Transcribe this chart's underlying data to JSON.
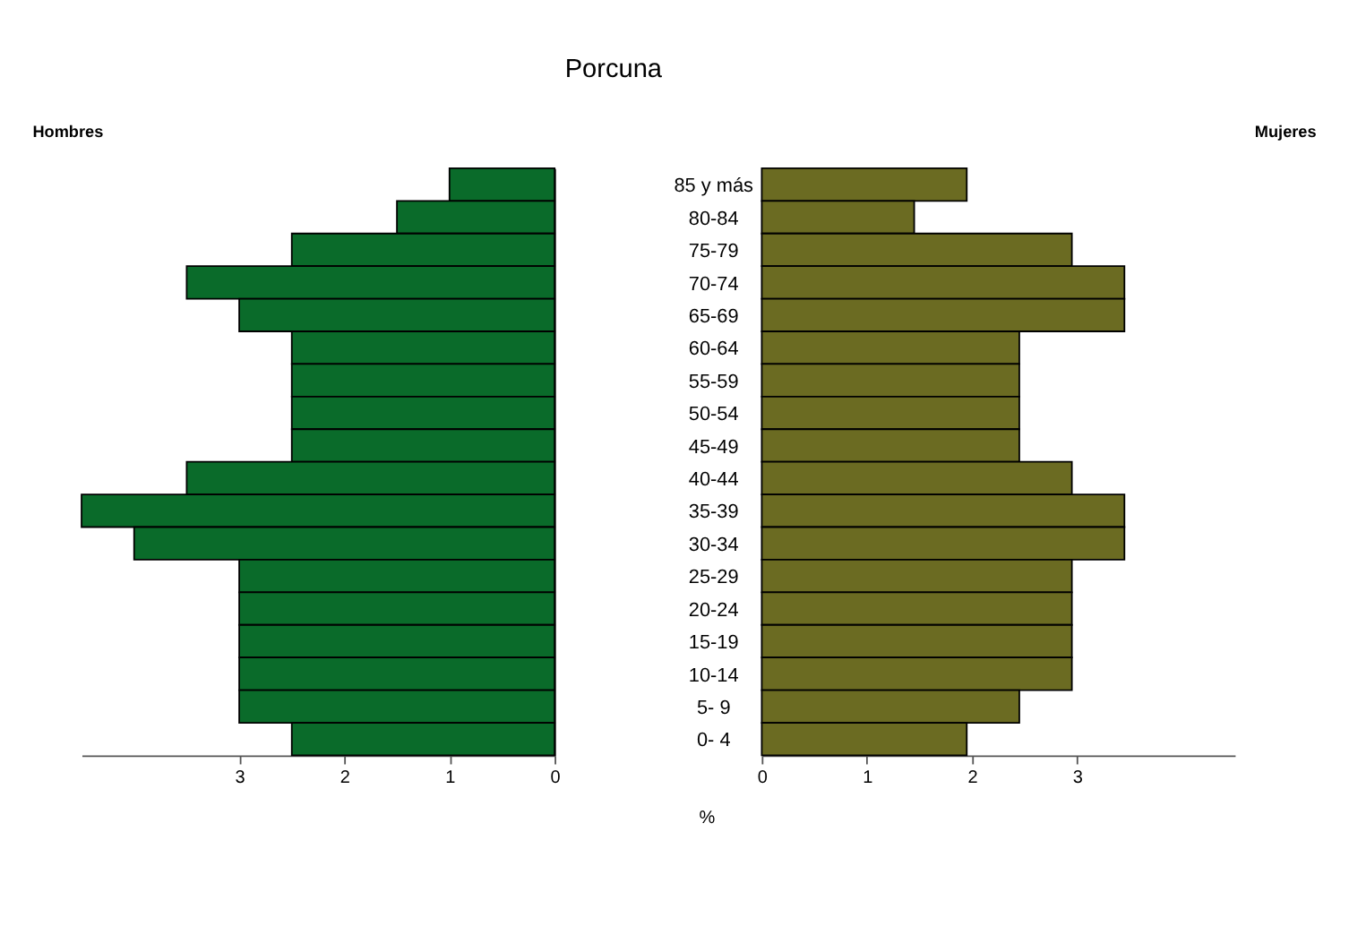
{
  "chart_data": [
    {
      "type": "bar",
      "orientation": "horizontal",
      "title": "Porcuna",
      "tick_labels": "x",
      "categories": [
        null,
        null,
        null,
        null,
        null,
        null,
        null,
        null,
        null,
        null,
        null,
        null,
        null,
        null,
        null,
        null,
        null,
        null
      ],
      "series": [
        {
          "name": "Hombres",
          "color": "#0a6b2a",
          "values": [
            1.0,
            1.5,
            2.5,
            3.5,
            3.0,
            2.5,
            2.5,
            2.5,
            2.5,
            3.5,
            4.5,
            4.0,
            3.0,
            3.0,
            3.0,
            3.0,
            3.0,
            2.5
          ]
        }
      ],
      "xlim": [
        4.5,
        0
      ],
      "xticks": [
        0,
        1,
        2,
        3
      ],
      "grid": false
    },
    {
      "type": "bar",
      "orientation": "horizontal",
      "xlabel": "%",
      "categories": [
        "85 y más",
        "80-84",
        "75-79",
        "70-74",
        "65-69",
        "60-64",
        "55-59",
        "50-54",
        "45-49",
        "40-44",
        "35-39",
        "30-34",
        "25-29",
        "20-24",
        "15-19",
        "10-14",
        "5- 9",
        "0- 4"
      ],
      "series": [
        {
          "name": "Mujeres",
          "color": "#6b6b22",
          "values": [
            1.95,
            1.45,
            2.95,
            3.45,
            3.45,
            2.45,
            2.45,
            2.45,
            2.45,
            2.95,
            3.45,
            3.45,
            2.95,
            2.95,
            2.95,
            2.95,
            2.45,
            1.95
          ]
        }
      ],
      "xlim": [
        0,
        4.5
      ],
      "xticks": [
        0,
        1,
        2,
        3
      ],
      "grid": false
    }
  ]
}
